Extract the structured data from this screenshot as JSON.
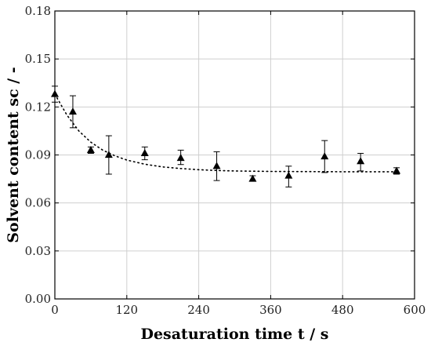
{
  "chart_data": {
    "type": "scatter",
    "xlabel": "Desaturation time t / s",
    "ylabel": "Solvent content sc / -",
    "xlim": [
      0,
      600
    ],
    "ylim": [
      0,
      0.18
    ],
    "x_ticks": [
      "0",
      "120",
      "240",
      "360",
      "480",
      "600"
    ],
    "y_ticks": [
      "0.00",
      "0.03",
      "0.06",
      "0.09",
      "0.12",
      "0.15",
      "0.18"
    ],
    "grid": true,
    "legend": "none",
    "series": [
      {
        "marker": "triangle",
        "x": [
          0,
          30,
          60,
          90,
          150,
          210,
          270,
          330,
          390,
          450,
          510,
          570
        ],
        "y": [
          0.128,
          0.117,
          0.093,
          0.09,
          0.091,
          0.088,
          0.083,
          0.075,
          0.077,
          0.089,
          0.086,
          0.08
        ],
        "error_low": [
          0.123,
          0.107,
          0.091,
          0.078,
          0.087,
          0.084,
          0.074,
          0.074,
          0.07,
          0.079,
          0.08,
          0.078
        ],
        "error_high": [
          0.133,
          0.127,
          0.095,
          0.102,
          0.095,
          0.093,
          0.092,
          0.077,
          0.083,
          0.099,
          0.091,
          0.082
        ]
      },
      {
        "style": "dotted-line",
        "x": [
          0,
          20,
          40,
          60,
          80,
          100,
          120,
          150,
          180,
          210,
          240,
          270,
          300,
          360,
          420,
          480,
          540,
          570
        ],
        "y": [
          0.128,
          0.115,
          0.105,
          0.098,
          0.093,
          0.0895,
          0.0868,
          0.0842,
          0.0825,
          0.0815,
          0.0808,
          0.0803,
          0.08,
          0.0797,
          0.0796,
          0.0795,
          0.0795,
          0.0795
        ]
      }
    ]
  }
}
